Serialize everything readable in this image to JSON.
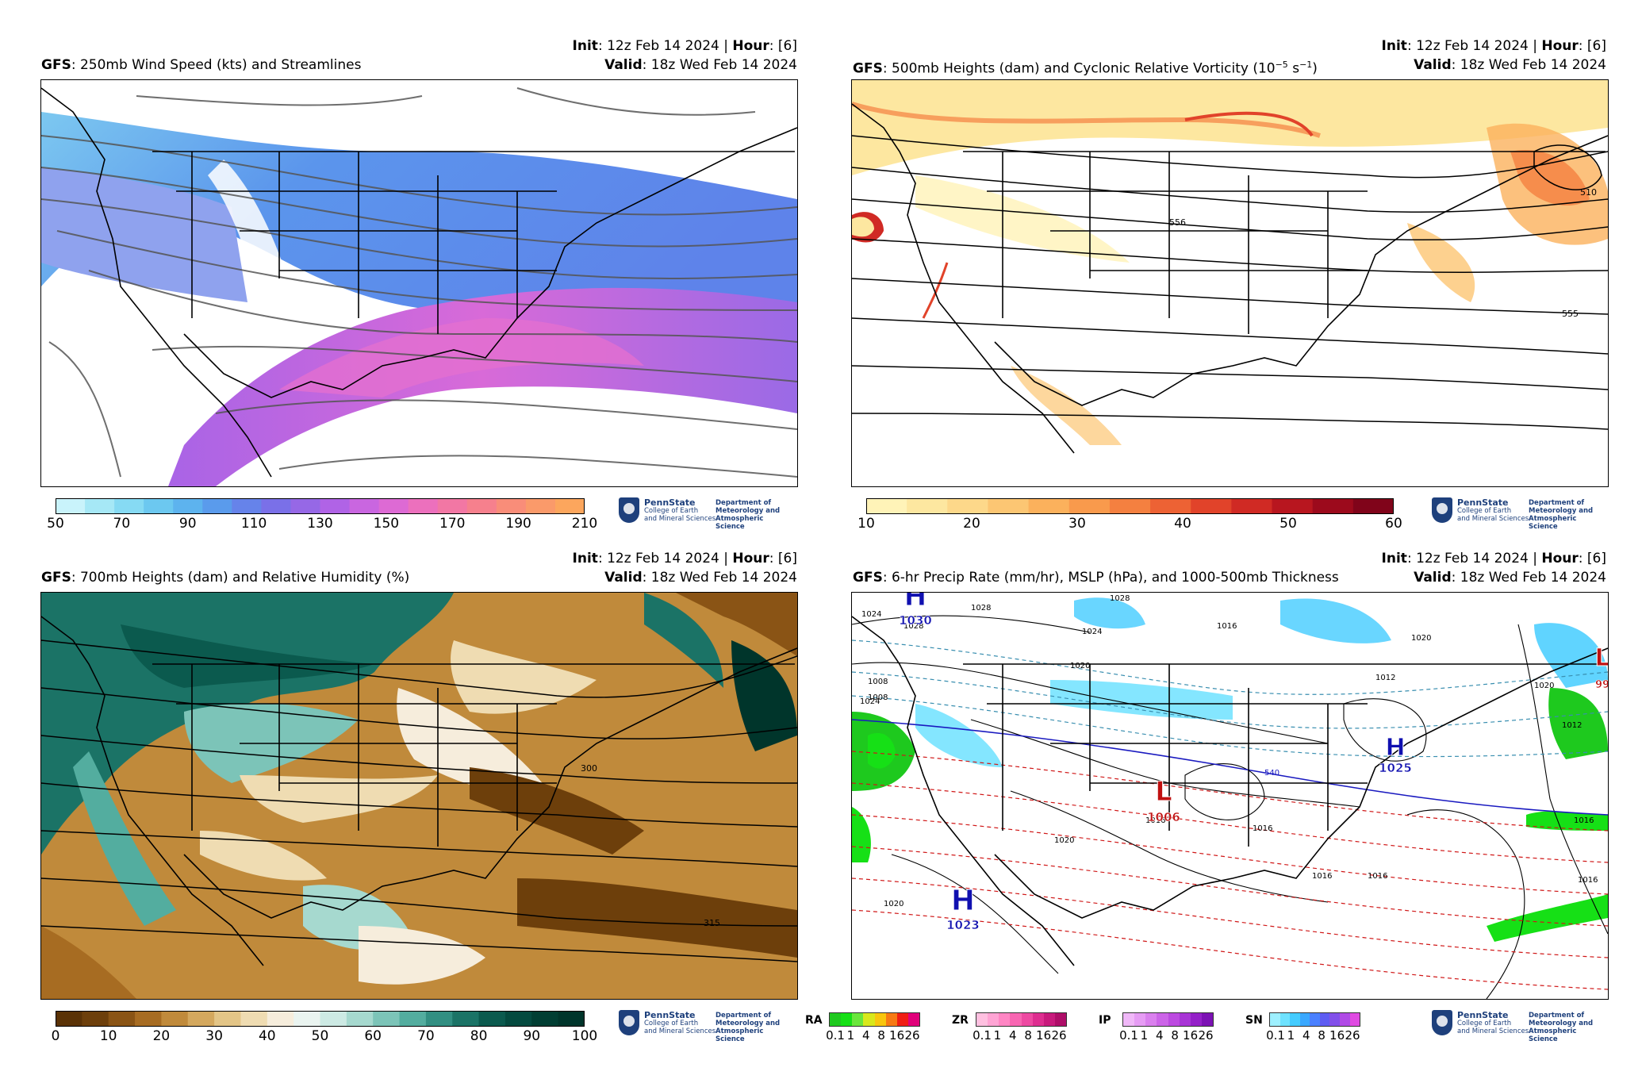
{
  "panels": [
    {
      "model": "GFS",
      "title": ": 250mb Wind Speed (kts) and Streamlines",
      "init_label": "Init",
      "init_value": ": 12z Feb 14 2024 | ",
      "hour_label": "Hour",
      "hour_value": ": [6]",
      "valid_label": "Valid",
      "valid_value": ": 18z Wed Feb 14 2024",
      "colorbar": {
        "ticks": [
          "50",
          "70",
          "90",
          "110",
          "130",
          "150",
          "170",
          "190",
          "210"
        ],
        "colors": [
          "#c9f3fb",
          "#a6e8f6",
          "#86daf3",
          "#6cc8f0",
          "#5db3ee",
          "#5a9bec",
          "#6683ea",
          "#7a70e8",
          "#9668e6",
          "#b063e6",
          "#c966e0",
          "#dd6ad4",
          "#ec70bd",
          "#f277a4",
          "#f6808d",
          "#f98d79",
          "#fa9a6a",
          "#fca65d"
        ]
      },
      "contour_labels": []
    },
    {
      "model": "GFS",
      "title_a": ": 500mb Heights (dam) and Cyclonic Relative Vorticity (10",
      "title_sup1": "−5",
      "title_b": " s",
      "title_sup2": "−1",
      "title_c": ")",
      "init_label": "Init",
      "init_value": ": 12z Feb 14 2024 | ",
      "hour_label": "Hour",
      "hour_value": ": [6]",
      "valid_label": "Valid",
      "valid_value": ": 18z Wed Feb 14 2024",
      "colorbar": {
        "ticks": [
          "10",
          "20",
          "30",
          "40",
          "50",
          "60"
        ],
        "colors": [
          "#fff3b8",
          "#fde7a0",
          "#fdd88a",
          "#fcc673",
          "#fbb15c",
          "#f99a4c",
          "#f48040",
          "#ed6234",
          "#e1432a",
          "#d02a24",
          "#b8161f",
          "#9c0a1c",
          "#80041a"
        ]
      },
      "contour_labels": [
        "556",
        "555",
        "510"
      ]
    },
    {
      "model": "GFS",
      "title": ": 700mb Heights (dam) and Relative Humidity (%)",
      "init_label": "Init",
      "init_value": ": 12z Feb 14 2024 | ",
      "hour_label": "Hour",
      "hour_value": ": [6]",
      "valid_label": "Valid",
      "valid_value": ": 18z Wed Feb 14 2024",
      "colorbar": {
        "ticks": [
          "0",
          "10",
          "20",
          "30",
          "40",
          "50",
          "60",
          "70",
          "80",
          "90",
          "100"
        ],
        "colors": [
          "#5a3206",
          "#6d3f0b",
          "#8a5415",
          "#a76c22",
          "#c08a3b",
          "#d4a85e",
          "#e3c587",
          "#efdcb2",
          "#f6eddc",
          "#eaf4f0",
          "#cdeae4",
          "#a6d9cf",
          "#7cc4b8",
          "#53ad9f",
          "#328f82",
          "#1b7366",
          "#0b5a4e",
          "#044a3f",
          "#013e33",
          "#00352b"
        ]
      },
      "contour_labels": [
        "300",
        "315"
      ]
    },
    {
      "model": "GFS",
      "title": ": 6-hr Precip Rate (mm/hr), MSLP (hPa), and 1000-500mb Thickness",
      "init_label": "Init",
      "init_value": ": 12z Feb 14 2024 | ",
      "hour_label": "Hour",
      "hour_value": ": [6]",
      "valid_label": "Valid",
      "valid_value": ": 18z Wed Feb 14 2024",
      "contour_labels": [
        "1028",
        "1028",
        "1024",
        "1028",
        "1020",
        "1024",
        "1008",
        "1008",
        "1020",
        "1016",
        "1016",
        "1024",
        "1020",
        "1016",
        "1012",
        "1020",
        "1016",
        "1016",
        "1020",
        "1012",
        "540",
        "1016",
        "1016"
      ],
      "pressure_centers": [
        {
          "symbol": "H",
          "value": "1030",
          "color": "#1010b0"
        },
        {
          "symbol": "H",
          "value": "1025",
          "color": "#1010b0"
        },
        {
          "symbol": "L",
          "value": "1006",
          "color": "#c01010"
        },
        {
          "symbol": "H",
          "value": "1023",
          "color": "#1010b0"
        },
        {
          "symbol": "L",
          "value": "99",
          "color": "#c01010"
        }
      ],
      "precip_legend": [
        {
          "label": "RA",
          "ticks": [
            "0.1",
            "1",
            "4",
            "8",
            "16",
            "26"
          ],
          "colors": [
            "#1ec91e",
            "#16e016",
            "#6ae63c",
            "#d8e81c",
            "#f8c60e",
            "#f77a14",
            "#f01e14",
            "#e0007a"
          ]
        },
        {
          "label": "ZR",
          "ticks": [
            "0.1",
            "1",
            "4",
            "8",
            "16",
            "26"
          ],
          "colors": [
            "#ffc0e0",
            "#ffa4d4",
            "#ff86c4",
            "#f866b2",
            "#ee4aa2",
            "#de2e90",
            "#c81a7c",
            "#ae0e68"
          ]
        },
        {
          "label": "IP",
          "ticks": [
            "0.1",
            "1",
            "4",
            "8",
            "16",
            "26"
          ],
          "colors": [
            "#f0b8f8",
            "#e69cf4",
            "#da80ee",
            "#cc64e8",
            "#bc4ae0",
            "#a834d6",
            "#9420c8",
            "#7c12b4"
          ]
        },
        {
          "label": "SN",
          "ticks": [
            "0.1",
            "1",
            "4",
            "8",
            "16",
            "26"
          ],
          "colors": [
            "#9ef0ff",
            "#6ee2ff",
            "#44ccff",
            "#3aa8ff",
            "#4a80ff",
            "#5e5cf2",
            "#8250ea",
            "#b04ae6",
            "#e04ae2"
          ]
        }
      ]
    }
  ],
  "logo": {
    "name": "PennState",
    "college_line1": "College of Earth",
    "college_line2": "and Mineral Sciences",
    "dept_line1": "Department of",
    "dept_line2": "Meteorology and",
    "dept_line3": "Atmospheric Science"
  }
}
